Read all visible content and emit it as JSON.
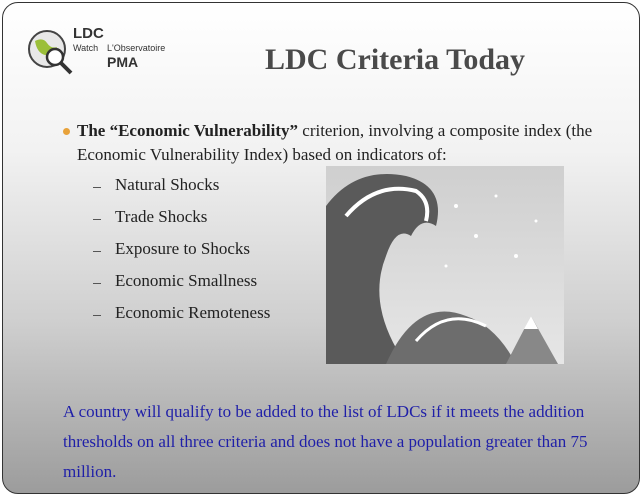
{
  "logo": {
    "name": "LDC",
    "lines": [
      "Watch",
      "L'Observatoire",
      "PMA"
    ]
  },
  "title": "LDC Criteria Today",
  "bullet": {
    "bold": "The “Economic Vulnerability”",
    "text": " criterion, involving a composite index (the Economic Vulnerability Index) based on indicators of:"
  },
  "items": [
    "Natural Shocks",
    "Trade Shocks",
    "Exposure to Shocks",
    "Economic Smallness",
    "Economic Remoteness"
  ],
  "note": "A country will qualify to be added to the list of LDCs if it meets the addition thresholds on all three criteria and does not have a population greater than 75 million."
}
